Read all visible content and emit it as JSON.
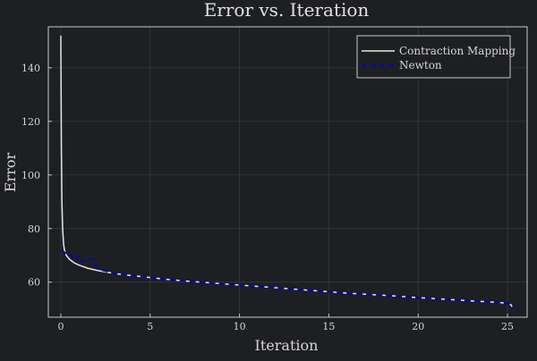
{
  "chart_data": {
    "type": "line",
    "title": "Error vs. Iteration",
    "xlabel": "Iteration",
    "ylabel": "Error",
    "xlim": [
      -0.7,
      26.1
    ],
    "ylim": [
      46.9,
      155.3
    ],
    "xticks": [
      0,
      5,
      10,
      15,
      20,
      25
    ],
    "yticks": [
      60,
      80,
      100,
      120,
      140
    ],
    "grid": true,
    "legend_position": "top-right",
    "series": [
      {
        "name": "Contraction Mapping",
        "style": "solid",
        "color": "#e6e6e6",
        "x": [
          0.0,
          0.03,
          0.06,
          0.1,
          0.15,
          0.2,
          0.3,
          0.5,
          0.75,
          1.0,
          1.5,
          2,
          3,
          4,
          5,
          6,
          7,
          8,
          9,
          10,
          11,
          12,
          13,
          14,
          15,
          16,
          17,
          18,
          19,
          20,
          21,
          22,
          23,
          24,
          24.5,
          25.0,
          25.2,
          25.3
        ],
        "y": [
          152.0,
          110.0,
          90.0,
          80.0,
          74.5,
          72.0,
          70.0,
          68.4,
          67.2,
          66.4,
          65.2,
          64.4,
          63.2,
          62.4,
          61.7,
          61.0,
          60.4,
          59.9,
          59.4,
          58.9,
          58.4,
          57.9,
          57.4,
          56.9,
          56.4,
          55.9,
          55.5,
          55.1,
          54.7,
          54.2,
          53.8,
          53.4,
          53.0,
          52.6,
          52.4,
          52.1,
          51.5,
          50.0
        ]
      },
      {
        "name": "Newton",
        "style": "dashed",
        "color": "#0b0b8c",
        "x": [
          0.0,
          0.3,
          0.6,
          0.8,
          1.0,
          1.2,
          1.5,
          1.8,
          2.0,
          3,
          4,
          5,
          6,
          7,
          8,
          9,
          10,
          11,
          12,
          13,
          14,
          15,
          16,
          17,
          18,
          19,
          20,
          21,
          22,
          23,
          24,
          24.5,
          25.0,
          25.2,
          25.3
        ],
        "y": [
          72.0,
          70.5,
          70.0,
          68.0,
          69.8,
          67.5,
          69.0,
          68.5,
          65.2,
          63.2,
          62.4,
          61.7,
          61.0,
          60.4,
          59.9,
          59.4,
          58.9,
          58.4,
          57.9,
          57.4,
          56.9,
          56.4,
          55.9,
          55.5,
          55.1,
          54.7,
          54.2,
          53.8,
          53.4,
          53.0,
          52.6,
          52.4,
          52.1,
          51.5,
          50.0
        ]
      }
    ]
  },
  "colors": {
    "background": "#1e1f22",
    "axis": "#c8c8c8",
    "grid": "#3a3b3f",
    "text": "#d6d6d6"
  }
}
